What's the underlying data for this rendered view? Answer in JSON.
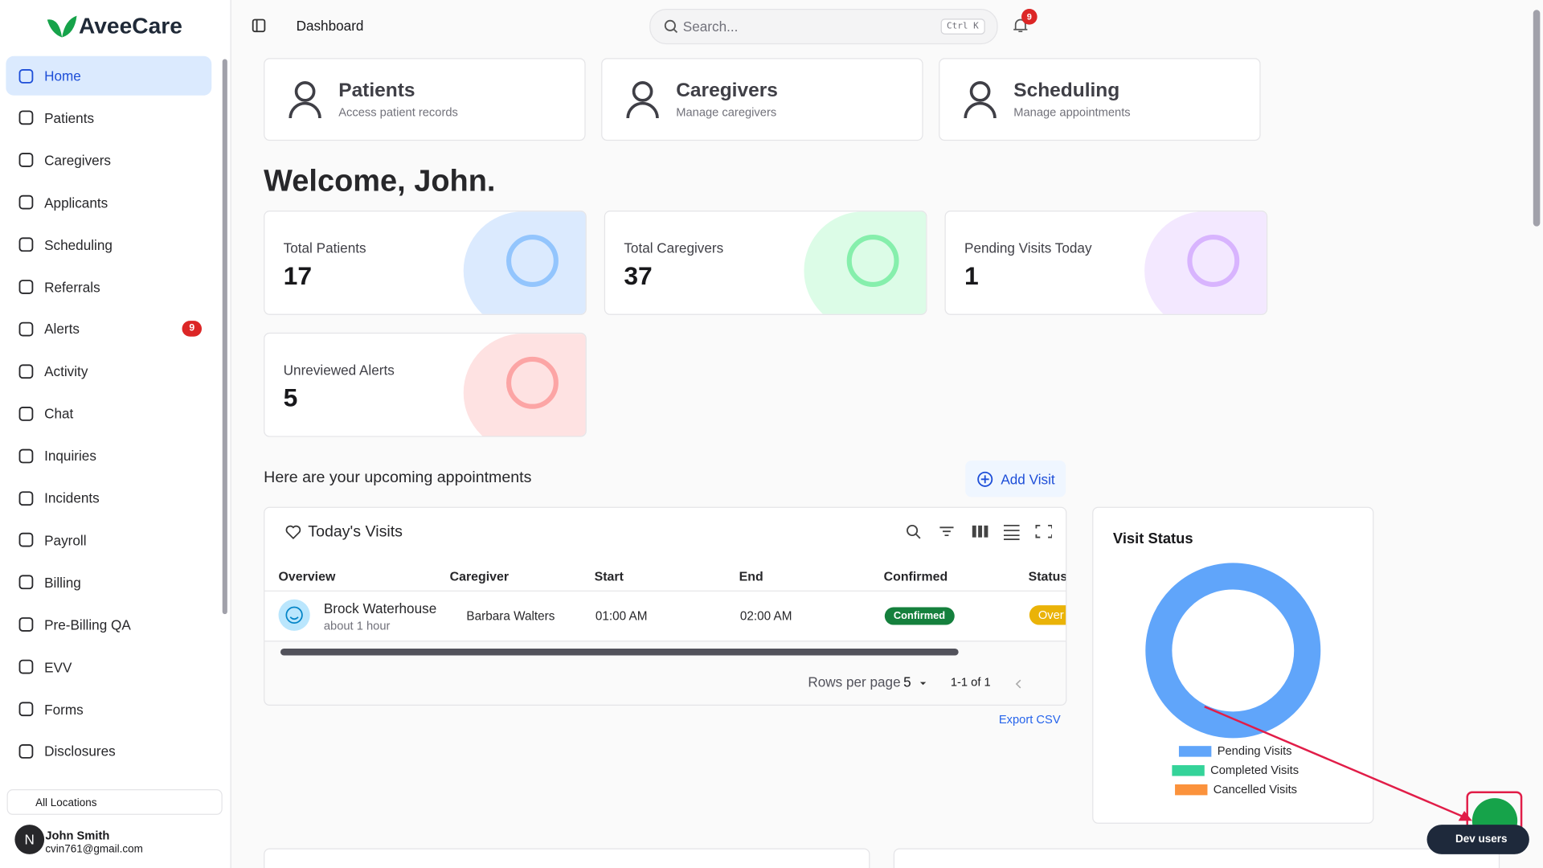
{
  "brand": "AveeCare",
  "nav": {
    "items": [
      "Home",
      "Patients",
      "Caregivers",
      "Applicants",
      "Scheduling",
      "Referrals",
      "Alerts",
      "Activity",
      "Chat",
      "Inquiries",
      "Incidents",
      "Payroll",
      "Billing",
      "Pre-Billing QA",
      "EVV",
      "Forms",
      "Disclosures"
    ],
    "alerts_badge": 9
  },
  "locations": "All Locations",
  "user": {
    "initial": "N",
    "name": "John Smith",
    "email": "cvin761@gmail.com"
  },
  "header": {
    "title": "Dashboard",
    "search_placeholder": "Search...",
    "shortcut": "Ctrl K",
    "notifications": 9
  },
  "quick_links": [
    {
      "title": "Patients",
      "subtitle": "Access patient records"
    },
    {
      "title": "Caregivers",
      "subtitle": "Manage caregivers"
    },
    {
      "title": "Scheduling",
      "subtitle": "Manage appointments"
    }
  ],
  "welcome": "Welcome, John.",
  "stats": [
    {
      "label": "Total Patients",
      "value": 17
    },
    {
      "label": "Total Caregivers",
      "value": 37
    },
    {
      "label": "Pending Visits Today",
      "value": 1
    },
    {
      "label": "Unreviewed Alerts",
      "value": 5
    }
  ],
  "appointments": {
    "heading": "Here are your upcoming appointments",
    "add_button": "Add Visit",
    "table": {
      "title": "Today's Visits",
      "columns": [
        "Overview",
        "Caregiver",
        "Start",
        "End",
        "Confirmed",
        "Status"
      ],
      "rows": [
        {
          "patient": "Brock Waterhouse",
          "eta": "about 1 hour",
          "caregiver": "Barbara Walters",
          "start": "01:00 AM",
          "end": "02:00 AM",
          "confirmed": "Confirmed",
          "status": "Over"
        }
      ]
    },
    "rows_per_page_label": "Rows per page",
    "rows_per_page": 5,
    "range": "1-1 of 1",
    "export": "Export CSV"
  },
  "chart_data": {
    "type": "donut",
    "title": "Visit Status",
    "categories": [
      "Pending Visits",
      "Completed Visits",
      "Cancelled Visits"
    ],
    "values": [
      1,
      0,
      0
    ],
    "colors": [
      "#60a5fa",
      "#34d399",
      "#fb923c"
    ]
  },
  "dev_users": "Dev users"
}
